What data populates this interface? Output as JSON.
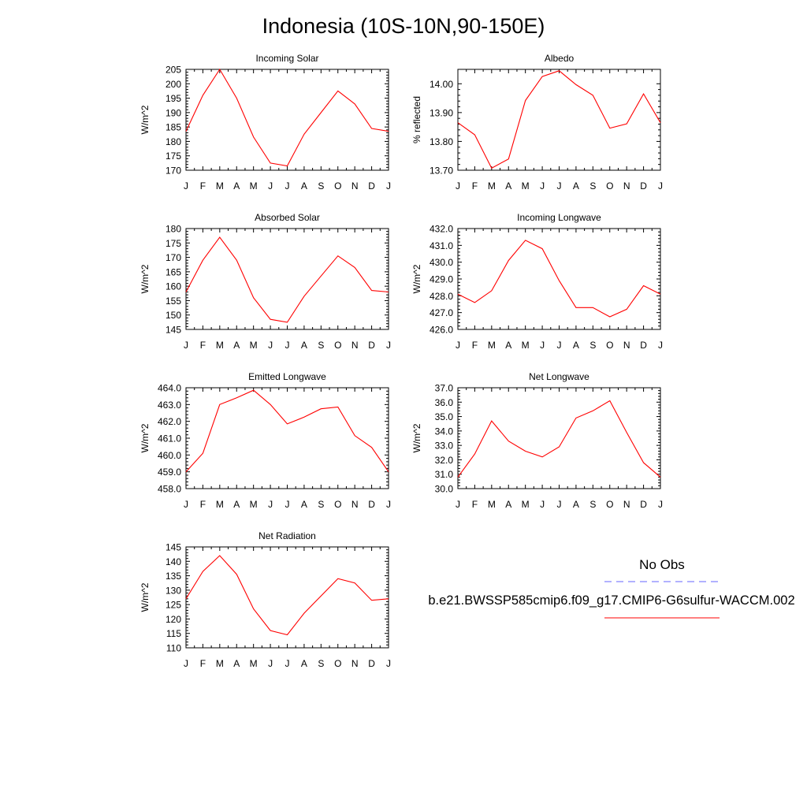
{
  "title": "Indonesia (10S-10N,90-150E)",
  "legend": {
    "obs_label": "No Obs",
    "obs_color": "#6666ff",
    "model_label": "b.e21.BWSSP585cmip6.f09_g17.CMIP6-G6sulfur-WACCM.002",
    "model_color": "#ff0000"
  },
  "chart_data": [
    {
      "type": "line",
      "title": "Incoming Solar",
      "ylabel": "W/m^2",
      "x": [
        "J",
        "F",
        "M",
        "A",
        "M",
        "J",
        "J",
        "A",
        "S",
        "O",
        "N",
        "D",
        "J"
      ],
      "ylim": [
        170,
        205
      ],
      "yticks": [
        "170",
        "175",
        "180",
        "185",
        "190",
        "195",
        "200",
        "205"
      ],
      "series": [
        {
          "values": [
            183.5,
            196,
            205,
            195,
            181.5,
            172.5,
            171.5,
            182.5,
            190,
            197.5,
            193,
            184.5,
            183.5
          ]
        }
      ]
    },
    {
      "type": "line",
      "title": "Albedo",
      "ylabel": "% reflected",
      "x": [
        "J",
        "F",
        "M",
        "A",
        "M",
        "J",
        "J",
        "A",
        "S",
        "O",
        "N",
        "D",
        "J"
      ],
      "ylim": [
        13.7,
        14.05
      ],
      "yticks": [
        "13.70",
        "13.80",
        "13.90",
        "14.00"
      ],
      "series": [
        {
          "values": [
            13.865,
            13.823,
            13.707,
            13.739,
            13.942,
            14.025,
            14.045,
            13.997,
            13.96,
            13.846,
            13.861,
            13.965,
            13.865
          ]
        }
      ]
    },
    {
      "type": "line",
      "title": "Absorbed Solar",
      "ylabel": "W/m^2",
      "x": [
        "J",
        "F",
        "M",
        "A",
        "M",
        "J",
        "J",
        "A",
        "S",
        "O",
        "N",
        "D",
        "J"
      ],
      "ylim": [
        145,
        180
      ],
      "yticks": [
        "145",
        "150",
        "155",
        "160",
        "165",
        "170",
        "175",
        "180"
      ],
      "series": [
        {
          "values": [
            158,
            169,
            177,
            169,
            156,
            148.5,
            147.5,
            156.5,
            163.5,
            170.5,
            166.5,
            158.5,
            158
          ]
        }
      ]
    },
    {
      "type": "line",
      "title": "Incoming Longwave",
      "ylabel": "W/m^2",
      "x": [
        "J",
        "F",
        "M",
        "A",
        "M",
        "J",
        "J",
        "A",
        "S",
        "O",
        "N",
        "D",
        "J"
      ],
      "ylim": [
        426.0,
        432.0
      ],
      "yticks": [
        "426.0",
        "427.0",
        "428.0",
        "429.0",
        "430.0",
        "431.0",
        "432.0"
      ],
      "series": [
        {
          "values": [
            428.1,
            427.6,
            428.3,
            430.1,
            431.3,
            430.8,
            428.9,
            427.3,
            427.3,
            426.75,
            427.2,
            428.6,
            428.1
          ]
        }
      ]
    },
    {
      "type": "line",
      "title": "Emitted Longwave",
      "ylabel": "W/m^2",
      "x": [
        "J",
        "F",
        "M",
        "A",
        "M",
        "J",
        "J",
        "A",
        "S",
        "O",
        "N",
        "D",
        "J"
      ],
      "ylim": [
        458.0,
        464.0
      ],
      "yticks": [
        "458.0",
        "459.0",
        "460.0",
        "461.0",
        "462.0",
        "463.0",
        "464.0"
      ],
      "series": [
        {
          "values": [
            459,
            460.1,
            463,
            463.4,
            463.85,
            463.0,
            461.85,
            462.25,
            462.75,
            462.85,
            461.15,
            460.45,
            459
          ]
        }
      ]
    },
    {
      "type": "line",
      "title": "Net Longwave",
      "ylabel": "W/m^2",
      "x": [
        "J",
        "F",
        "M",
        "A",
        "M",
        "J",
        "J",
        "A",
        "S",
        "O",
        "N",
        "D",
        "J"
      ],
      "ylim": [
        30.0,
        37.0
      ],
      "yticks": [
        "30.0",
        "31.0",
        "32.0",
        "33.0",
        "34.0",
        "35.0",
        "36.0",
        "37.0"
      ],
      "series": [
        {
          "values": [
            30.8,
            32.4,
            34.7,
            33.3,
            32.6,
            32.2,
            32.9,
            34.9,
            35.4,
            36.1,
            33.9,
            31.8,
            30.8
          ]
        }
      ]
    },
    {
      "type": "line",
      "title": "Net Radiation",
      "ylabel": "W/m^2",
      "x": [
        "J",
        "F",
        "M",
        "A",
        "M",
        "J",
        "J",
        "A",
        "S",
        "O",
        "N",
        "D",
        "J"
      ],
      "ylim": [
        110,
        145
      ],
      "yticks": [
        "110",
        "115",
        "120",
        "125",
        "130",
        "135",
        "140",
        "145"
      ],
      "series": [
        {
          "values": [
            127,
            136.5,
            142,
            135.5,
            123.5,
            116,
            114.5,
            122,
            128,
            134,
            132.5,
            126.5,
            127
          ]
        }
      ]
    }
  ]
}
